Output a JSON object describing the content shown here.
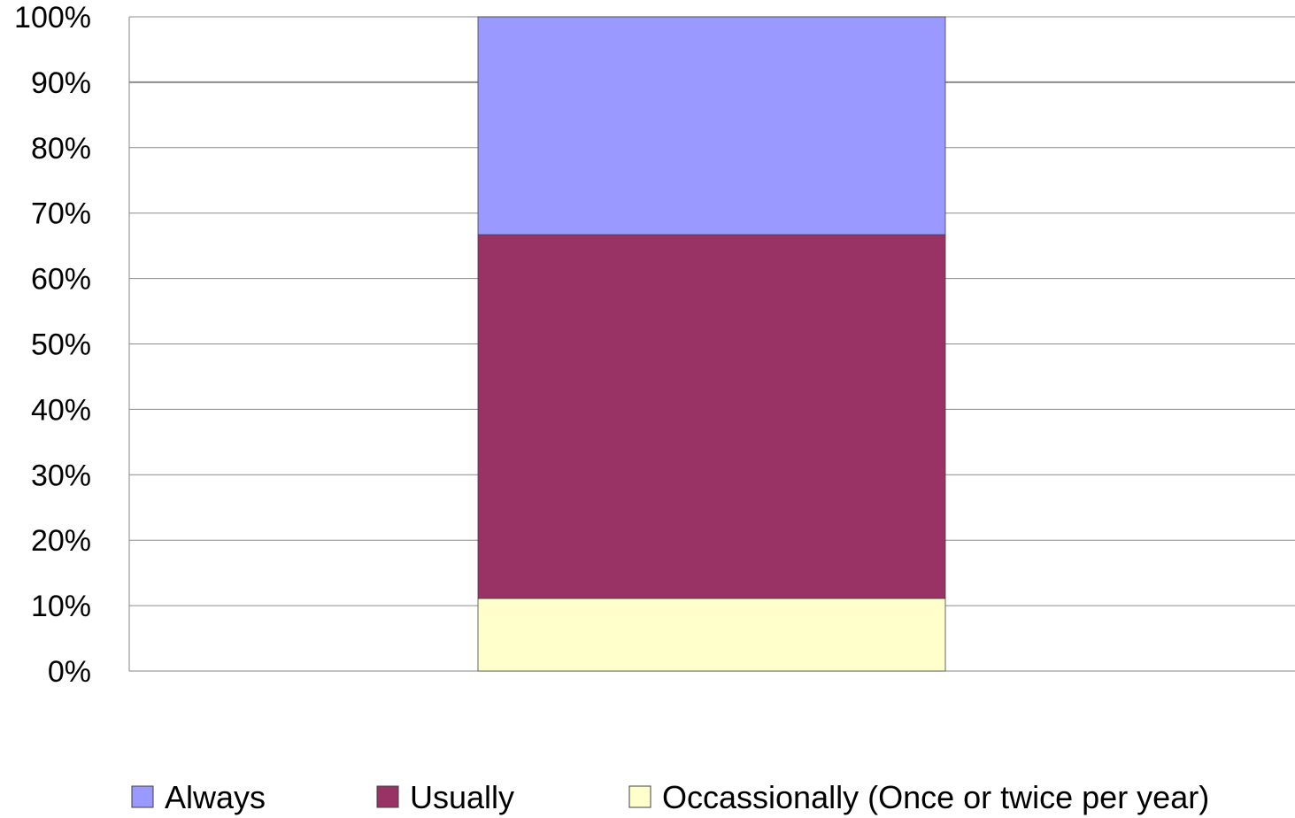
{
  "chart_data": {
    "type": "bar",
    "stacked": true,
    "percent_stacked": true,
    "categories": [
      ""
    ],
    "series": [
      {
        "name": "Occassionally (Once or twice per year)",
        "values": [
          11.1
        ],
        "color": "#FFFFCC"
      },
      {
        "name": "Usually",
        "values": [
          55.6
        ],
        "color": "#993366"
      },
      {
        "name": "Always",
        "values": [
          33.3
        ],
        "color": "#9999FF"
      }
    ],
    "title": "",
    "xlabel": "",
    "ylabel": "",
    "ylim": [
      0,
      100
    ],
    "yticks": [
      "0%",
      "10%",
      "20%",
      "30%",
      "40%",
      "50%",
      "60%",
      "70%",
      "80%",
      "90%",
      "100%"
    ],
    "grid": true,
    "legend": {
      "placement": "bottom",
      "order": [
        "Always",
        "Usually",
        "Occassionally (Once or twice per year)"
      ]
    }
  }
}
